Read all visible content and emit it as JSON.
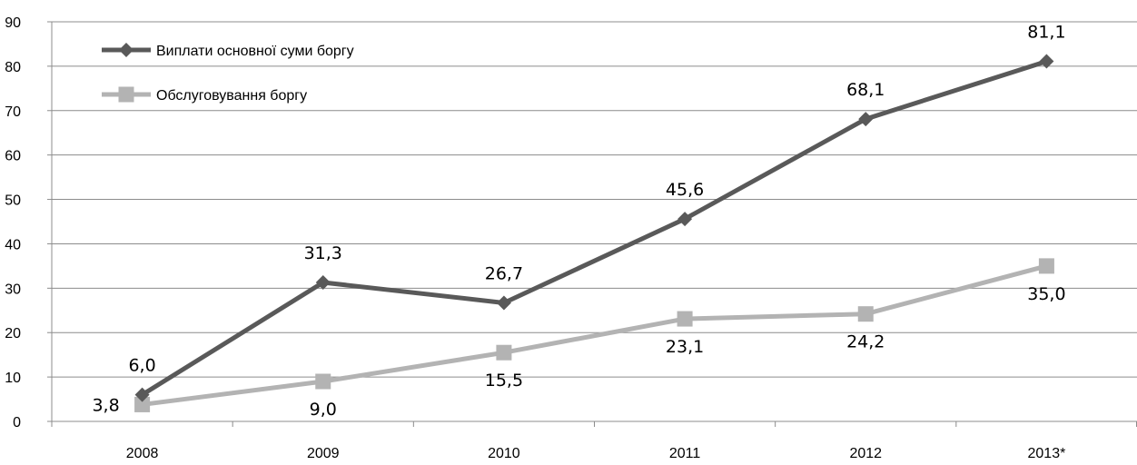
{
  "chart_data": {
    "type": "line",
    "categories": [
      "2008",
      "2009",
      "2010",
      "2011",
      "2012",
      "2013*"
    ],
    "y_ticks": [
      "0",
      "10",
      "20",
      "30",
      "40",
      "50",
      "60",
      "70",
      "80",
      "90"
    ],
    "ylim": [
      0,
      90
    ],
    "grid": true,
    "legend_position": "top-left",
    "series": [
      {
        "name": "Виплати основної суми боргу",
        "values": [
          6.0,
          31.3,
          26.7,
          45.6,
          68.1,
          81.1
        ],
        "labels": [
          "6,0",
          "31,3",
          "26,7",
          "45,6",
          "68,1",
          "81,1"
        ],
        "label_placement": "above",
        "marker": "diamond",
        "color": "#595959"
      },
      {
        "name": "Обслуговування боргу",
        "values": [
          3.8,
          9.0,
          15.5,
          23.1,
          24.2,
          35.0
        ],
        "labels": [
          "3,8",
          "9,0",
          "15,5",
          "23,1",
          "24,2",
          "35,0"
        ],
        "label_placement": "below",
        "marker": "square",
        "color": "#b3b3b3"
      }
    ]
  }
}
